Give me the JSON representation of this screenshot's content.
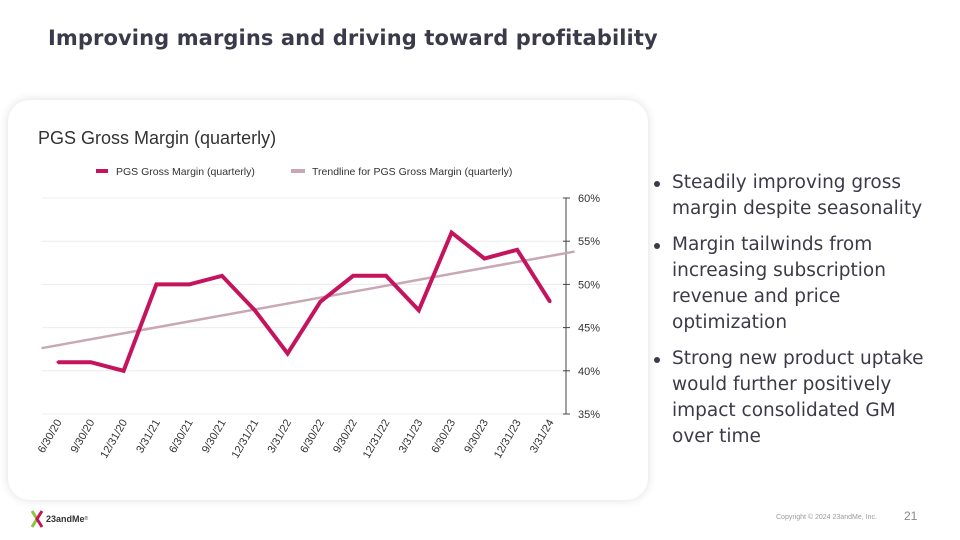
{
  "slide": {
    "title": "Improving margins and driving toward profitability",
    "page_number": "21",
    "copyright": "Copyright © 2024 23andMe, Inc.",
    "logo_text": "23andMe",
    "logo_mark": "®"
  },
  "bullets": [
    "Steadily improving gross margin despite seasonality",
    "Margin tailwinds from increasing subscription revenue and price optimization",
    "Strong new product uptake would further positively impact consolidated GM over time"
  ],
  "colors": {
    "series": "#c4145e",
    "trendline": "#c9a8b4",
    "title": "#3a3a4a"
  },
  "chart_data": {
    "type": "line",
    "title": "PGS Gross Margin (quarterly)",
    "x": [
      "6/30/20",
      "9/30/20",
      "12/31/20",
      "3/31/21",
      "6/30/21",
      "9/30/21",
      "12/31/21",
      "3/31/22",
      "6/30/22",
      "9/30/22",
      "12/31/22",
      "3/31/23",
      "6/30/23",
      "9/30/23",
      "12/31/23",
      "3/31/24"
    ],
    "series": [
      {
        "name": "PGS Gross Margin (quarterly)",
        "values": [
          41,
          41,
          40,
          50,
          50,
          51,
          47,
          42,
          48,
          51,
          51,
          47,
          56,
          53,
          54,
          48
        ]
      },
      {
        "name": "Trendline for PGS Gross Margin (quarterly)",
        "type": "linear-trend"
      }
    ],
    "yticks": [
      "60%",
      "55%",
      "50%",
      "45%",
      "40%",
      "35%"
    ],
    "ylim": [
      35,
      60
    ],
    "yaxis_side": "right",
    "grid": true,
    "legend_position": "top"
  }
}
